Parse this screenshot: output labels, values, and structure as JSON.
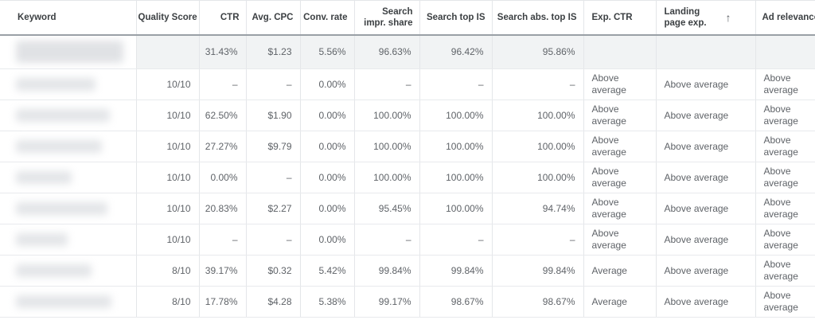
{
  "table": {
    "columns": [
      {
        "key": "keyword",
        "label": "Keyword",
        "align": "left"
      },
      {
        "key": "quality_score",
        "label": "Quality Score",
        "align": "right"
      },
      {
        "key": "ctr",
        "label": "CTR",
        "align": "right"
      },
      {
        "key": "avg_cpc",
        "label": "Avg. CPC",
        "align": "right"
      },
      {
        "key": "conv_rate",
        "label": "Conv. rate",
        "align": "right"
      },
      {
        "key": "search_impr_share",
        "label": "Search impr. share",
        "align": "right"
      },
      {
        "key": "search_top_is",
        "label": "Search top IS",
        "align": "right"
      },
      {
        "key": "search_abs_top_is",
        "label": "Search abs. top IS",
        "align": "right"
      },
      {
        "key": "exp_ctr",
        "label": "Exp. CTR",
        "align": "left"
      },
      {
        "key": "landing_page_exp",
        "label": "Landing page exp.",
        "align": "left"
      },
      {
        "key": "ad_relevance",
        "label": "Ad relevance",
        "align": "left"
      }
    ],
    "sort": {
      "column": "landing_page_exp",
      "direction": "ascending",
      "icon": "↑"
    },
    "rows": [
      {
        "type": "summary",
        "keyword": {
          "redacted": true,
          "blur_width": 135,
          "blur_height": 28
        },
        "quality_score": "",
        "ctr": "31.43%",
        "avg_cpc": "$1.23",
        "conv_rate": "5.56%",
        "search_impr_share": "96.63%",
        "search_top_is": "96.42%",
        "search_abs_top_is": "95.86%",
        "exp_ctr": "",
        "landing_page_exp": "",
        "ad_relevance": ""
      },
      {
        "type": "data",
        "keyword": {
          "redacted": true,
          "blur_width": 100,
          "blur_height": 16
        },
        "quality_score": "10/10",
        "ctr": "–",
        "avg_cpc": "–",
        "conv_rate": "0.00%",
        "search_impr_share": "–",
        "search_top_is": "–",
        "search_abs_top_is": "–",
        "exp_ctr": "Above average",
        "landing_page_exp": "Above average",
        "ad_relevance": "Above average"
      },
      {
        "type": "data",
        "keyword": {
          "redacted": true,
          "blur_width": 118,
          "blur_height": 16
        },
        "quality_score": "10/10",
        "ctr": "62.50%",
        "avg_cpc": "$1.90",
        "conv_rate": "0.00%",
        "search_impr_share": "100.00%",
        "search_top_is": "100.00%",
        "search_abs_top_is": "100.00%",
        "exp_ctr": "Above average",
        "landing_page_exp": "Above average",
        "ad_relevance": "Above average"
      },
      {
        "type": "data",
        "keyword": {
          "redacted": true,
          "blur_width": 108,
          "blur_height": 16
        },
        "quality_score": "10/10",
        "ctr": "27.27%",
        "avg_cpc": "$9.79",
        "conv_rate": "0.00%",
        "search_impr_share": "100.00%",
        "search_top_is": "100.00%",
        "search_abs_top_is": "100.00%",
        "exp_ctr": "Above average",
        "landing_page_exp": "Above average",
        "ad_relevance": "Above average"
      },
      {
        "type": "data",
        "keyword": {
          "redacted": true,
          "blur_width": 70,
          "blur_height": 16
        },
        "quality_score": "10/10",
        "ctr": "0.00%",
        "avg_cpc": "–",
        "conv_rate": "0.00%",
        "search_impr_share": "100.00%",
        "search_top_is": "100.00%",
        "search_abs_top_is": "100.00%",
        "exp_ctr": "Above average",
        "landing_page_exp": "Above average",
        "ad_relevance": "Above average"
      },
      {
        "type": "data",
        "keyword": {
          "redacted": true,
          "blur_width": 115,
          "blur_height": 16
        },
        "quality_score": "10/10",
        "ctr": "20.83%",
        "avg_cpc": "$2.27",
        "conv_rate": "0.00%",
        "search_impr_share": "95.45%",
        "search_top_is": "100.00%",
        "search_abs_top_is": "94.74%",
        "exp_ctr": "Above average",
        "landing_page_exp": "Above average",
        "ad_relevance": "Above average"
      },
      {
        "type": "data",
        "keyword": {
          "redacted": true,
          "blur_width": 65,
          "blur_height": 16
        },
        "quality_score": "10/10",
        "ctr": "–",
        "avg_cpc": "–",
        "conv_rate": "0.00%",
        "search_impr_share": "–",
        "search_top_is": "–",
        "search_abs_top_is": "–",
        "exp_ctr": "Above average",
        "landing_page_exp": "Above average",
        "ad_relevance": "Above average"
      },
      {
        "type": "data",
        "keyword": {
          "redacted": true,
          "blur_width": 95,
          "blur_height": 16
        },
        "quality_score": "8/10",
        "ctr": "39.17%",
        "avg_cpc": "$0.32",
        "conv_rate": "5.42%",
        "search_impr_share": "99.84%",
        "search_top_is": "99.84%",
        "search_abs_top_is": "99.84%",
        "exp_ctr": "Average",
        "landing_page_exp": "Above average",
        "ad_relevance": "Above average"
      },
      {
        "type": "data",
        "keyword": {
          "redacted": true,
          "blur_width": 120,
          "blur_height": 16
        },
        "quality_score": "8/10",
        "ctr": "17.78%",
        "avg_cpc": "$4.28",
        "conv_rate": "5.38%",
        "search_impr_share": "99.17%",
        "search_top_is": "98.67%",
        "search_abs_top_is": "98.67%",
        "exp_ctr": "Average",
        "landing_page_exp": "Above average",
        "ad_relevance": "Above average"
      }
    ],
    "colors": {
      "header_text": "#3c4043",
      "cell_text": "#5f6368",
      "grid_line": "#e4e6e9",
      "header_separator": "#9aa0a6",
      "summary_row_bg": "#f1f3f4"
    }
  }
}
